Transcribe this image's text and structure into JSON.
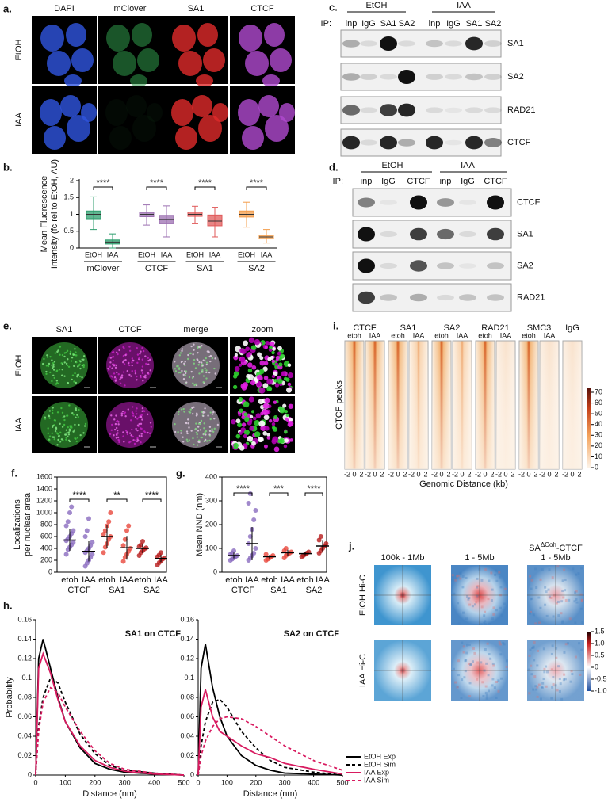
{
  "panels": {
    "a": {
      "label": "a.",
      "columns": [
        "DAPI",
        "mClover",
        "SA1",
        "CTCF"
      ],
      "rows": [
        "EtOH",
        "IAA"
      ]
    },
    "c": {
      "label": "c.",
      "conditions": [
        "EtOH",
        "IAA"
      ],
      "ip_label": "IP:",
      "lanes": [
        "inp",
        "IgG",
        "SA1",
        "SA2",
        "inp",
        "IgG",
        "SA1",
        "SA2"
      ],
      "blots": [
        "SA1",
        "SA2",
        "RAD21",
        "CTCF"
      ]
    },
    "d": {
      "label": "d.",
      "conditions": [
        "EtOH",
        "IAA"
      ],
      "ip_label": "IP:",
      "lanes": [
        "inp",
        "IgG",
        "CTCF",
        "inp",
        "IgG",
        "CTCF"
      ],
      "blots": [
        "CTCF",
        "SA1",
        "SA2",
        "RAD21"
      ]
    },
    "e": {
      "label": "e.",
      "columns": [
        "SA1",
        "CTCF",
        "merge",
        "zoom"
      ],
      "rows": [
        "EtOH",
        "IAA"
      ]
    },
    "i": {
      "label": "i.",
      "groups": [
        "CTCF",
        "SA1",
        "SA2",
        "RAD21",
        "SMC3",
        "IgG"
      ],
      "conditions": [
        "etoh",
        "IAA"
      ],
      "row_label": "CTCF peaks",
      "x_label": "Genomic Distance (kb)",
      "xticks": [
        -2,
        0,
        2
      ],
      "colorbar_ticks": [
        70,
        60,
        50,
        40,
        30,
        20,
        10,
        0
      ]
    },
    "j": {
      "label": "j.",
      "columns": [
        "100k - 1Mb",
        "1 - 5Mb"
      ],
      "third_column": {
        "prefix": "SA",
        "superscript": "ΔCoh",
        "suffix": "-CTCF",
        "range": "1 - 5Mb"
      },
      "rows": [
        "EtOH Hi-C",
        "IAA Hi-C"
      ],
      "colorbar_ticks": [
        1.5,
        {
          "value": 1,
          "label": "1.0"
        },
        0.5,
        0,
        -0.5,
        {
          "value": -1,
          "label": "-1.0"
        }
      ]
    }
  },
  "chart_data": [
    {
      "type": "box",
      "label": "b.",
      "y_label": [
        "Mean Fluorescence",
        "Intensity (fc rel to EtOH, AU)"
      ],
      "conditions": [
        "EtOH",
        "IAA"
      ],
      "significance": [
        "****",
        "****",
        "****",
        "****"
      ],
      "ylim": [
        0,
        2
      ],
      "yticks": [
        0,
        0.5,
        1,
        1.5,
        2
      ],
      "series": [
        {
          "name": "mClover",
          "color": "#2e9e6e",
          "boxes": [
            {
              "min": 0.55,
              "q1": 0.87,
              "median": 1.0,
              "q3": 1.1,
              "max": 1.52
            },
            {
              "min": 0.0,
              "q1": 0.12,
              "median": 0.18,
              "q3": 0.24,
              "max": 0.42
            }
          ]
        },
        {
          "name": "CTCF",
          "color": "#9b6fb0",
          "boxes": [
            {
              "min": 0.68,
              "q1": 0.93,
              "median": 1.0,
              "q3": 1.06,
              "max": 1.28
            },
            {
              "min": 0.33,
              "q1": 0.72,
              "median": 0.85,
              "q3": 0.97,
              "max": 1.25
            }
          ]
        },
        {
          "name": "SA1",
          "color": "#e05a5a",
          "boxes": [
            {
              "min": 0.72,
              "q1": 0.94,
              "median": 1.0,
              "q3": 1.07,
              "max": 1.24
            },
            {
              "min": 0.33,
              "q1": 0.66,
              "median": 0.8,
              "q3": 0.98,
              "max": 1.21
            }
          ]
        },
        {
          "name": "SA2",
          "color": "#f39c4a",
          "boxes": [
            {
              "min": 0.62,
              "q1": 0.92,
              "median": 1.0,
              "q3": 1.1,
              "max": 1.36
            },
            {
              "min": 0.15,
              "q1": 0.27,
              "median": 0.33,
              "q3": 0.38,
              "max": 0.55
            }
          ]
        }
      ]
    },
    {
      "type": "dot",
      "label": "f.",
      "y_label": [
        "Localizations",
        "per nuclear area"
      ],
      "conditions": [
        "etoh",
        "IAA"
      ],
      "significance": [
        "****",
        "**",
        "****"
      ],
      "ylim": [
        0,
        1600
      ],
      "yticks": [
        0,
        200,
        400,
        600,
        800,
        1000,
        1200,
        1400,
        1600
      ],
      "series": [
        {
          "name": "CTCF",
          "color": "#8a6bbf",
          "groups": [
            {
              "values": [
                300,
                380,
                420,
                460,
                500,
                530,
                560,
                600,
                650,
                700,
                780,
                850,
                1000,
                1100
              ],
              "mean": 540,
              "sd": 180
            },
            {
              "values": [
                100,
                150,
                200,
                250,
                300,
                330,
                360,
                400,
                450,
                500,
                600,
                700,
                900
              ],
              "mean": 350,
              "sd": 170
            }
          ]
        },
        {
          "name": "SA1",
          "color": "#e8473c",
          "groups": [
            {
              "values": [
                330,
                420,
                480,
                550,
                600,
                640,
                700,
                780,
                850,
                1000
              ],
              "mean": 600,
              "sd": 200
            },
            {
              "values": [
                180,
                250,
                300,
                350,
                400,
                450,
                550,
                700,
                780
              ],
              "mean": 410,
              "sd": 200
            }
          ]
        },
        {
          "name": "SA2",
          "color": "#b71c1c",
          "groups": [
            {
              "values": [
                280,
                330,
                360,
                390,
                410,
                430,
                460,
                520
              ],
              "mean": 400,
              "sd": 80
            },
            {
              "values": [
                120,
                160,
                190,
                220,
                240,
                260,
                290,
                330
              ],
              "mean": 230,
              "sd": 60
            }
          ]
        }
      ]
    },
    {
      "type": "dot",
      "label": "g.",
      "y_label": [
        "Mean NND (nm)"
      ],
      "conditions": [
        "etoh",
        "IAA"
      ],
      "significance": [
        "****",
        "***",
        "****"
      ],
      "ylim": [
        0,
        400
      ],
      "yticks": [
        0,
        100,
        200,
        300,
        400
      ],
      "series": [
        {
          "name": "CTCF",
          "color": "#8a6bbf",
          "groups": [
            {
              "values": [
                50,
                55,
                60,
                65,
                70,
                75,
                80,
                90
              ],
              "mean": 70,
              "sd": 12
            },
            {
              "values": [
                50,
                60,
                70,
                80,
                100,
                120,
                150,
                180,
                220,
                260,
                290,
                330
              ],
              "mean": 120,
              "sd": 70
            }
          ]
        },
        {
          "name": "SA1",
          "color": "#e8473c",
          "groups": [
            {
              "values": [
                50,
                55,
                60,
                65,
                70,
                75
              ],
              "mean": 65,
              "sd": 8
            },
            {
              "values": [
                60,
                70,
                75,
                80,
                85,
                90,
                100
              ],
              "mean": 82,
              "sd": 12
            }
          ]
        },
        {
          "name": "SA2",
          "color": "#b71c1c",
          "groups": [
            {
              "values": [
                65,
                70,
                75,
                80,
                85
              ],
              "mean": 78,
              "sd": 7
            },
            {
              "values": [
                80,
                90,
                100,
                110,
                120,
                135,
                150
              ],
              "mean": 110,
              "sd": 22
            }
          ]
        }
      ]
    },
    {
      "type": "line",
      "label": "h.",
      "y_label": "Probability",
      "x_label": "Distance (nm)",
      "x": [
        0,
        10,
        25,
        50,
        75,
        100,
        150,
        200,
        250,
        300,
        400,
        500
      ],
      "xlim": [
        0,
        500
      ],
      "xticks": [
        0,
        100,
        200,
        300,
        400,
        500
      ],
      "ylim": [
        0,
        0.16
      ],
      "yticks": [
        0,
        0.02,
        0.04,
        0.06,
        0.08,
        0.1,
        0.12,
        0.14,
        0.16
      ],
      "series": [
        {
          "name": "EtOH Exp",
          "color": "#000000",
          "dash": false
        },
        {
          "name": "EtOH Sim",
          "color": "#000000",
          "dash": true
        },
        {
          "name": "IAA Exp",
          "color": "#d81b60",
          "dash": false
        },
        {
          "name": "IAA Sim",
          "color": "#d81b60",
          "dash": true
        }
      ],
      "plots": [
        {
          "title": "SA1 on CTCF",
          "values": [
            [
              0,
              0.12,
              0.14,
              0.11,
              0.08,
              0.055,
              0.028,
              0.012,
              0.006,
              0.003,
              0.001,
              0
            ],
            [
              0,
              0.05,
              0.08,
              0.1,
              0.095,
              0.075,
              0.042,
              0.022,
              0.01,
              0.005,
              0.002,
              0
            ],
            [
              0,
              0.11,
              0.125,
              0.105,
              0.078,
              0.055,
              0.03,
              0.015,
              0.008,
              0.004,
              0.001,
              0
            ],
            [
              0,
              0.045,
              0.075,
              0.09,
              0.085,
              0.07,
              0.045,
              0.025,
              0.012,
              0.006,
              0.002,
              0
            ]
          ]
        },
        {
          "title": "SA2 on CTCF",
          "values": [
            [
              0,
              0.11,
              0.135,
              0.09,
              0.06,
              0.04,
              0.02,
              0.01,
              0.005,
              0.002,
              0.001,
              0
            ],
            [
              0,
              0.03,
              0.055,
              0.075,
              0.078,
              0.07,
              0.045,
              0.028,
              0.015,
              0.008,
              0.003,
              0
            ],
            [
              0,
              0.07,
              0.088,
              0.06,
              0.045,
              0.04,
              0.03,
              0.022,
              0.018,
              0.012,
              0.006,
              0.001
            ],
            [
              0,
              0.02,
              0.035,
              0.05,
              0.058,
              0.06,
              0.058,
              0.05,
              0.04,
              0.03,
              0.015,
              0.005
            ]
          ]
        }
      ]
    }
  ]
}
